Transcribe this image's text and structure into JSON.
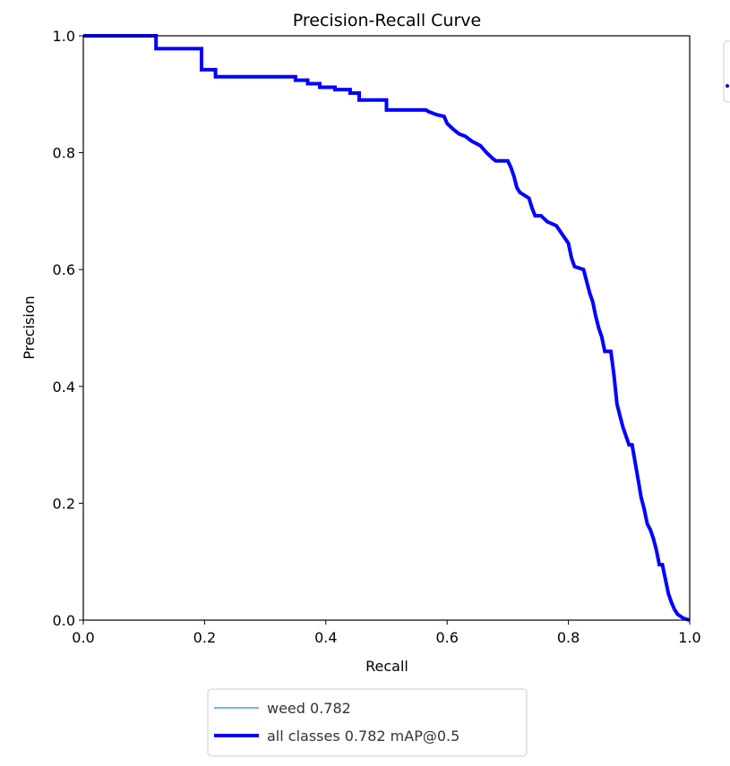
{
  "chart_data": {
    "type": "line",
    "title": "Precision-Recall Curve",
    "xlabel": "Recall",
    "ylabel": "Precision",
    "xlim": [
      0.0,
      1.0
    ],
    "ylim": [
      0.0,
      1.0
    ],
    "x_ticks": [
      "0.0",
      "0.2",
      "0.4",
      "0.6",
      "0.8",
      "1.0"
    ],
    "y_ticks": [
      "0.0",
      "0.2",
      "0.4",
      "0.6",
      "0.8",
      "1.0"
    ],
    "grid": false,
    "legend_position": "below plot",
    "colors": {
      "weed": "#7fb2dd",
      "all_classes": "#0000ff"
    },
    "series": [
      {
        "name": "weed 0.782",
        "color": "#7fb2dd",
        "points": []
      },
      {
        "name": "all classes 0.782 mAP@0.5",
        "color": "#0000ff",
        "points": [
          [
            0.0,
            1.0
          ],
          [
            0.12,
            1.0
          ],
          [
            0.12,
            0.978
          ],
          [
            0.195,
            0.978
          ],
          [
            0.195,
            0.942
          ],
          [
            0.218,
            0.942
          ],
          [
            0.218,
            0.93
          ],
          [
            0.35,
            0.93
          ],
          [
            0.35,
            0.924
          ],
          [
            0.37,
            0.924
          ],
          [
            0.37,
            0.918
          ],
          [
            0.39,
            0.918
          ],
          [
            0.39,
            0.912
          ],
          [
            0.415,
            0.912
          ],
          [
            0.415,
            0.908
          ],
          [
            0.44,
            0.908
          ],
          [
            0.44,
            0.902
          ],
          [
            0.455,
            0.902
          ],
          [
            0.455,
            0.89
          ],
          [
            0.5,
            0.89
          ],
          [
            0.5,
            0.873
          ],
          [
            0.565,
            0.873
          ],
          [
            0.57,
            0.87
          ],
          [
            0.583,
            0.865
          ],
          [
            0.595,
            0.862
          ],
          [
            0.6,
            0.85
          ],
          [
            0.61,
            0.84
          ],
          [
            0.62,
            0.832
          ],
          [
            0.63,
            0.828
          ],
          [
            0.64,
            0.82
          ],
          [
            0.655,
            0.812
          ],
          [
            0.665,
            0.8
          ],
          [
            0.675,
            0.79
          ],
          [
            0.68,
            0.786
          ],
          [
            0.7,
            0.786
          ],
          [
            0.705,
            0.775
          ],
          [
            0.71,
            0.76
          ],
          [
            0.715,
            0.74
          ],
          [
            0.72,
            0.732
          ],
          [
            0.735,
            0.722
          ],
          [
            0.74,
            0.705
          ],
          [
            0.745,
            0.692
          ],
          [
            0.755,
            0.692
          ],
          [
            0.765,
            0.682
          ],
          [
            0.78,
            0.675
          ],
          [
            0.79,
            0.66
          ],
          [
            0.8,
            0.645
          ],
          [
            0.805,
            0.62
          ],
          [
            0.81,
            0.605
          ],
          [
            0.825,
            0.6
          ],
          [
            0.83,
            0.58
          ],
          [
            0.835,
            0.56
          ],
          [
            0.84,
            0.545
          ],
          [
            0.845,
            0.52
          ],
          [
            0.85,
            0.5
          ],
          [
            0.855,
            0.485
          ],
          [
            0.86,
            0.46
          ],
          [
            0.87,
            0.46
          ],
          [
            0.875,
            0.42
          ],
          [
            0.88,
            0.37
          ],
          [
            0.885,
            0.35
          ],
          [
            0.89,
            0.33
          ],
          [
            0.895,
            0.315
          ],
          [
            0.9,
            0.3
          ],
          [
            0.905,
            0.3
          ],
          [
            0.91,
            0.27
          ],
          [
            0.915,
            0.24
          ],
          [
            0.92,
            0.21
          ],
          [
            0.925,
            0.19
          ],
          [
            0.93,
            0.165
          ],
          [
            0.935,
            0.155
          ],
          [
            0.94,
            0.14
          ],
          [
            0.945,
            0.12
          ],
          [
            0.95,
            0.095
          ],
          [
            0.955,
            0.095
          ],
          [
            0.96,
            0.07
          ],
          [
            0.965,
            0.045
          ],
          [
            0.97,
            0.03
          ],
          [
            0.975,
            0.018
          ],
          [
            0.98,
            0.01
          ],
          [
            0.99,
            0.003
          ],
          [
            1.0,
            0.0
          ]
        ]
      }
    ]
  }
}
